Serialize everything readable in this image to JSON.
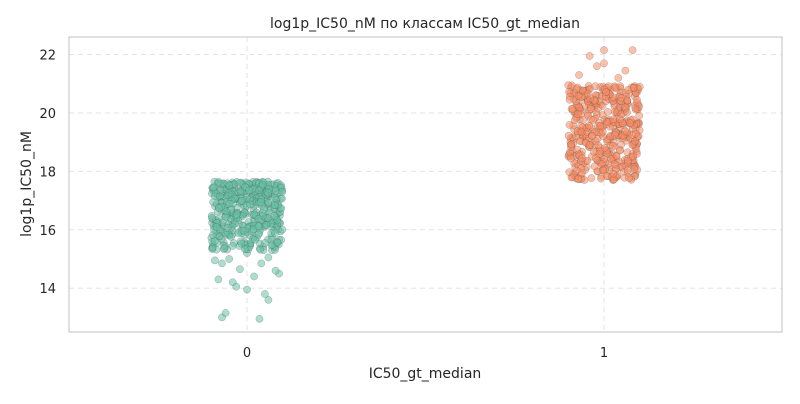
{
  "chart_data": {
    "type": "scatter",
    "subtype": "stripplot",
    "title": "log1p_IC50_nM по классам IC50_gt_median",
    "xlabel": "IC50_gt_median",
    "ylabel": "log1p_IC50_nM",
    "categories": [
      "0",
      "1"
    ],
    "ylim": [
      12.5,
      22.6
    ],
    "yticks": [
      "14",
      "16",
      "18",
      "20",
      "22"
    ],
    "grid": true,
    "grid_style": "dashed",
    "legend": "none",
    "colors": {
      "class_0": "#66c2a5",
      "class_1": "#fc8d62"
    },
    "series": [
      {
        "category": "0",
        "approx_count": 480,
        "range": [
          12.95,
          17.65
        ],
        "sample_points": [
          [
            -0.07,
            13.0
          ],
          [
            -0.06,
            13.15
          ],
          [
            0.035,
            12.95
          ],
          [
            0.0,
            13.95
          ],
          [
            0.06,
            13.6
          ],
          [
            0.05,
            13.8
          ],
          [
            -0.04,
            14.2
          ],
          [
            -0.03,
            14.05
          ],
          [
            -0.08,
            14.3
          ],
          [
            0.09,
            14.5
          ],
          [
            0.08,
            14.6
          ],
          [
            -0.07,
            14.85
          ],
          [
            -0.09,
            14.95
          ],
          [
            0.0,
            15.2
          ],
          [
            0.02,
            14.4
          ],
          [
            -0.05,
            15.0
          ],
          [
            0.07,
            15.3
          ],
          [
            0.04,
            14.85
          ],
          [
            -0.02,
            14.65
          ],
          [
            0.06,
            15.05
          ]
        ]
      },
      {
        "category": "1",
        "approx_count": 480,
        "range": [
          17.65,
          22.15
        ],
        "sample_points": [
          [
            0.0,
            22.15
          ],
          [
            0.08,
            22.15
          ],
          [
            -0.04,
            21.95
          ],
          [
            -0.07,
            21.3
          ],
          [
            0.06,
            21.45
          ],
          [
            -0.02,
            21.6
          ],
          [
            0.04,
            21.2
          ],
          [
            -0.1,
            20.95
          ],
          [
            0.1,
            20.9
          ],
          [
            0.0,
            21.7
          ]
        ]
      }
    ]
  }
}
